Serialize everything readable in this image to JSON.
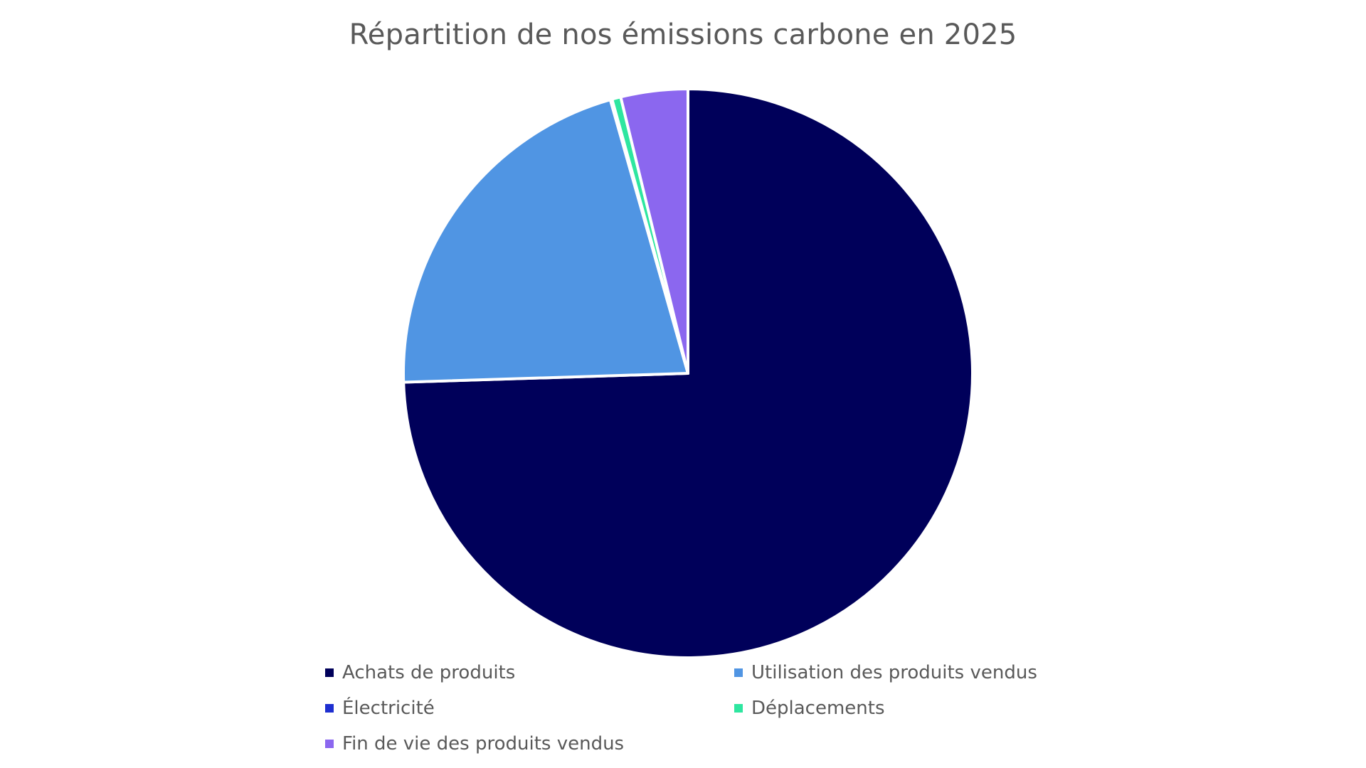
{
  "chart_data": {
    "type": "pie",
    "title": "Répartition de nos émissions carbone en 2025",
    "categories": [
      "Achats de produits",
      "Utilisation des produits vendus",
      "Électricité",
      "Déplacements",
      "Fin de vie des produits vendus"
    ],
    "values": [
      74.5,
      21.1,
      0.1,
      0.5,
      3.8
    ],
    "colors": [
      "#00005A",
      "#5095E3",
      "#1E2FD0",
      "#2EE6A0",
      "#8B67EF"
    ],
    "legend_position": "bottom",
    "legend_columns": 2
  }
}
